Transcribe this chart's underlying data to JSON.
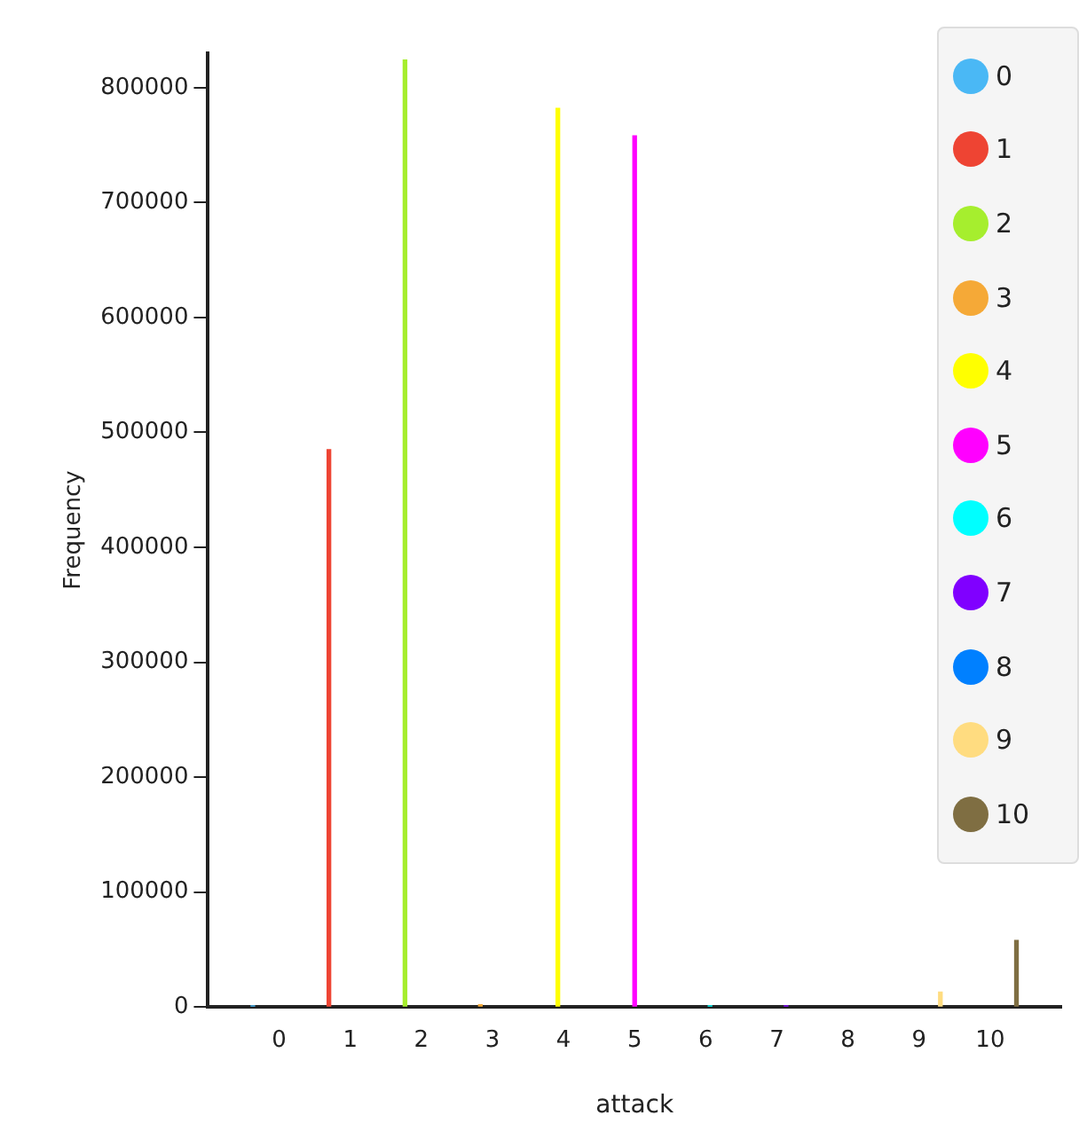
{
  "chart_data": {
    "type": "bar",
    "xlabel": "attack",
    "ylabel": "Frequency",
    "xlim": [
      -1,
      11
    ],
    "xticks": [
      0,
      1,
      2,
      3,
      4,
      5,
      6,
      7,
      8,
      9,
      10
    ],
    "ylim": [
      0,
      830000
    ],
    "yticks": [
      0,
      100000,
      200000,
      300000,
      400000,
      500000,
      600000,
      700000,
      800000
    ],
    "grid": false,
    "legend": "top right",
    "series": [
      {
        "name": "0",
        "color": "#4ab8f5",
        "x": [
          -0.37
        ],
        "values": [
          1000
        ]
      },
      {
        "name": "1",
        "color": "#ee4433",
        "x": [
          0.7
        ],
        "values": [
          485000
        ]
      },
      {
        "name": "2",
        "color": "#a6ee2e",
        "x": [
          1.77
        ],
        "values": [
          824000
        ]
      },
      {
        "name": "3",
        "color": "#f5a937",
        "x": [
          2.83
        ],
        "values": [
          2000
        ]
      },
      {
        "name": "4",
        "color": "#ffff00",
        "x": [
          3.92
        ],
        "values": [
          782000
        ]
      },
      {
        "name": "5",
        "color": "#ff00ff",
        "x": [
          5.0
        ],
        "values": [
          758000
        ]
      },
      {
        "name": "6",
        "color": "#00ffff",
        "x": [
          6.06
        ],
        "values": [
          1000
        ]
      },
      {
        "name": "7",
        "color": "#8000ff",
        "x": [
          7.13
        ],
        "values": [
          1000
        ]
      },
      {
        "name": "8",
        "color": "#0080ff"
      },
      {
        "name": "9",
        "color": "#ffdc80",
        "x": [
          9.3
        ],
        "values": [
          13000
        ]
      },
      {
        "name": "10",
        "color": "#7f6e42",
        "x": [
          10.37
        ],
        "values": [
          58000
        ]
      }
    ]
  }
}
